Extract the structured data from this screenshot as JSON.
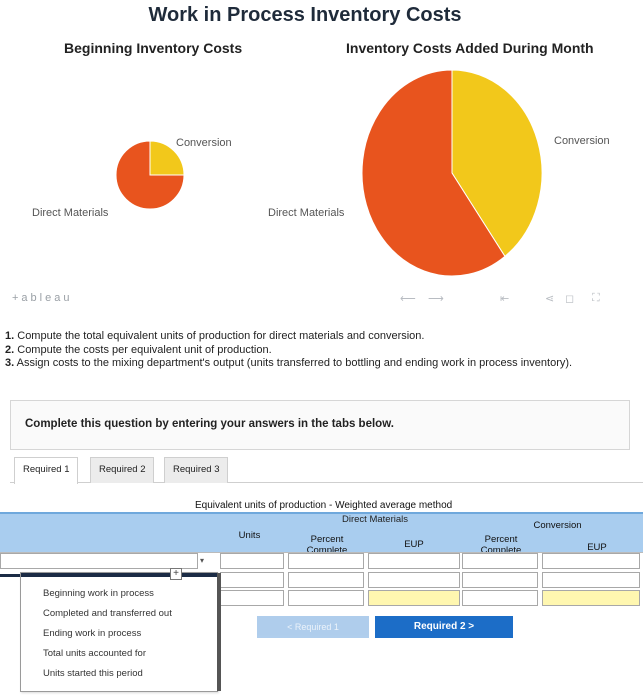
{
  "visualization": {
    "title": "Work in Process Inventory Costs",
    "beginning": {
      "title": "Beginning Inventory Costs",
      "conversion_label": "Conversion",
      "materials_label": "Direct Materials"
    },
    "added": {
      "title": "Inventory Costs Added During Month",
      "conversion_label": "Conversion",
      "materials_label": "Direct Materials"
    },
    "colors": {
      "direct_materials": "#e8541e",
      "conversion": "#f2c81b"
    },
    "logo": "+ableau"
  },
  "chart_data": [
    {
      "type": "pie",
      "title": "Beginning Inventory Costs",
      "labels": [
        "Conversion",
        "Direct Materials"
      ],
      "values": [
        25,
        75
      ]
    },
    {
      "type": "pie",
      "title": "Inventory Costs Added During Month",
      "labels": [
        "Conversion",
        "Direct Materials"
      ],
      "values": [
        40,
        60
      ]
    }
  ],
  "instructions": {
    "item1_num": "1.",
    "item1": "Compute the total equivalent units of production for direct materials and conversion.",
    "item2_num": "2.",
    "item2": "Compute the costs per equivalent unit of production.",
    "item3_num": "3.",
    "item3": "Assign costs to the mixing department's output (units transferred to bottling and ending work in process inventory)."
  },
  "question": {
    "text": "Complete this question by entering your answers in the tabs below."
  },
  "tabs": [
    "Required 1",
    "Required 2",
    "Required 3"
  ],
  "table": {
    "title": "Equivalent units of production - Weighted average method",
    "units_header": "Units",
    "dm_group": "Direct Materials",
    "conv_group": "Conversion",
    "percent_complete": "Percent Complete",
    "eup": "EUP"
  },
  "dropdown_options": [
    "Beginning work in process",
    "Completed and transferred out",
    "Ending work in process",
    "Total units accounted for",
    "Units started this period"
  ],
  "nav": {
    "prev": "< Required 1",
    "next": "Required 2 >"
  }
}
